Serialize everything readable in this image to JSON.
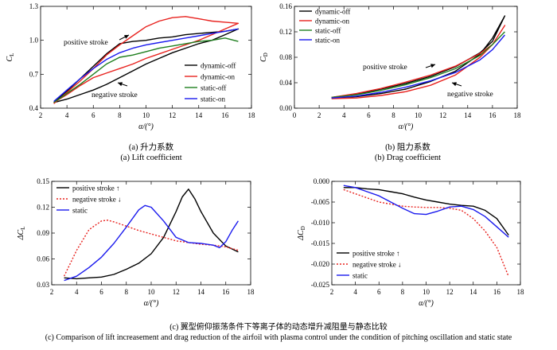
{
  "captions": {
    "a_zh": "(a) 升力系数",
    "a_en": "(a) Lift coefficient",
    "b_zh": "(b) 阻力系数",
    "b_en": "(b) Drag coefficient",
    "c_zh": "(c) 翼型俯仰振荡条件下等离子体的动态增升减阻量与静态比较",
    "c_en": "(c) Comparison of lift increasement and drag reduction of the airfoil with plasma control under the condition of pitching oscillation and static state"
  },
  "colors": {
    "black": "#000000",
    "red": "#e8231f",
    "green": "#1f7f1f",
    "blue": "#1a1aee",
    "gray": "#777777"
  },
  "chart_data": [
    {
      "id": "a",
      "type": "line",
      "xlabel": "α/(°)",
      "ylabel": "C_L",
      "xlim": [
        2,
        18
      ],
      "ylim": [
        0.4,
        1.3
      ],
      "xticks": [
        2,
        4,
        6,
        8,
        10,
        12,
        14,
        16,
        18
      ],
      "yticks": [
        0.4,
        0.7,
        1.0,
        1.3
      ],
      "grid": false,
      "legend_position": "bottom-right",
      "annotations": [
        "positive stroke",
        "negative stroke"
      ],
      "series": [
        {
          "name": "dynamic-off",
          "color": "#000000",
          "dash": "",
          "x": [
            3,
            4,
            5,
            6,
            7,
            8,
            9,
            10,
            11,
            12,
            13,
            14,
            15,
            16,
            17,
            16,
            15,
            14,
            13,
            12,
            11,
            10,
            9,
            8,
            7,
            6,
            5,
            4,
            3
          ],
          "y": [
            0.45,
            0.55,
            0.66,
            0.77,
            0.88,
            0.97,
            0.99,
            1.0,
            1.02,
            1.03,
            1.05,
            1.06,
            1.07,
            1.08,
            1.1,
            1.05,
            1.0,
            0.97,
            0.93,
            0.89,
            0.84,
            0.79,
            0.73,
            0.67,
            0.61,
            0.56,
            0.52,
            0.48,
            0.45
          ]
        },
        {
          "name": "dynamic-on",
          "color": "#e8231f",
          "dash": "",
          "x": [
            3,
            4,
            5,
            6,
            7,
            8,
            9,
            10,
            11,
            12,
            13,
            14,
            15,
            16,
            17,
            16,
            15,
            14,
            13,
            12,
            11,
            10,
            9,
            8,
            7,
            6,
            5,
            4,
            3
          ],
          "y": [
            0.44,
            0.54,
            0.64,
            0.75,
            0.87,
            0.96,
            1.04,
            1.12,
            1.17,
            1.2,
            1.21,
            1.19,
            1.17,
            1.16,
            1.15,
            1.1,
            1.05,
            1.0,
            0.96,
            0.92,
            0.88,
            0.84,
            0.79,
            0.75,
            0.71,
            0.67,
            0.6,
            0.52,
            0.45
          ]
        },
        {
          "name": "static-off",
          "color": "#1f7f1f",
          "dash": "",
          "x": [
            3,
            4,
            5,
            6,
            7,
            8,
            9,
            10,
            11,
            12,
            13,
            14,
            15,
            16,
            17
          ],
          "y": [
            0.45,
            0.53,
            0.61,
            0.7,
            0.79,
            0.85,
            0.87,
            0.9,
            0.93,
            0.95,
            0.97,
            0.99,
            1.0,
            1.02,
            0.99
          ]
        },
        {
          "name": "static-on",
          "color": "#1a1aee",
          "dash": "",
          "x": [
            3,
            4,
            5,
            6,
            7,
            8,
            9,
            10,
            11,
            12,
            13,
            14,
            15,
            16,
            17
          ],
          "y": [
            0.46,
            0.56,
            0.66,
            0.75,
            0.83,
            0.89,
            0.93,
            0.96,
            0.98,
            1.0,
            1.02,
            1.04,
            1.06,
            1.08,
            1.1
          ]
        }
      ]
    },
    {
      "id": "b",
      "type": "line",
      "xlabel": "α/(°)",
      "ylabel": "C_D",
      "xlim": [
        0,
        18
      ],
      "ylim": [
        0,
        0.16
      ],
      "xticks": [
        0,
        2,
        4,
        6,
        8,
        10,
        12,
        14,
        16,
        18
      ],
      "yticks": [
        0.0,
        0.04,
        0.08,
        0.12,
        0.16
      ],
      "grid": false,
      "legend_position": "top-left",
      "annotations": [
        "positive stroke",
        "negative stroke"
      ],
      "series": [
        {
          "name": "dynamic-off",
          "color": "#000000",
          "dash": "",
          "x": [
            3,
            5,
            7,
            9,
            11,
            13,
            15,
            16,
            17,
            16,
            15,
            13,
            11,
            9,
            7,
            5,
            3
          ],
          "y": [
            0.017,
            0.022,
            0.03,
            0.039,
            0.05,
            0.065,
            0.087,
            0.105,
            0.145,
            0.11,
            0.085,
            0.058,
            0.042,
            0.03,
            0.023,
            0.018,
            0.016
          ]
        },
        {
          "name": "dynamic-on",
          "color": "#e8231f",
          "dash": "",
          "x": [
            3,
            5,
            7,
            9,
            11,
            13,
            15,
            16,
            17,
            16,
            15,
            13,
            11,
            9,
            7,
            5,
            3
          ],
          "y": [
            0.017,
            0.023,
            0.031,
            0.041,
            0.052,
            0.066,
            0.086,
            0.1,
            0.13,
            0.1,
            0.08,
            0.052,
            0.036,
            0.026,
            0.02,
            0.016,
            0.015
          ]
        },
        {
          "name": "static-off",
          "color": "#1f7f1f",
          "dash": "",
          "x": [
            3,
            5,
            7,
            9,
            11,
            13,
            15,
            16,
            17
          ],
          "y": [
            0.017,
            0.021,
            0.028,
            0.037,
            0.048,
            0.062,
            0.083,
            0.1,
            0.12
          ]
        },
        {
          "name": "static-on",
          "color": "#1a1aee",
          "dash": "",
          "x": [
            3,
            5,
            7,
            9,
            11,
            13,
            15,
            16,
            17
          ],
          "y": [
            0.016,
            0.019,
            0.025,
            0.033,
            0.043,
            0.056,
            0.076,
            0.092,
            0.115
          ]
        }
      ]
    },
    {
      "id": "c",
      "type": "line",
      "xlabel": "α/(°)",
      "ylabel": "ΔC_L",
      "xlim": [
        2,
        18
      ],
      "ylim": [
        0.03,
        0.15
      ],
      "xticks": [
        2,
        4,
        6,
        8,
        10,
        12,
        14,
        16,
        18
      ],
      "yticks": [
        0.03,
        0.06,
        0.09,
        0.12,
        0.15
      ],
      "grid": false,
      "legend_position": "top-left",
      "series": [
        {
          "name": "positive stroke ↑",
          "color": "#000000",
          "dash": "",
          "x": [
            3,
            4,
            5,
            6,
            7,
            8,
            9,
            10,
            11,
            12,
            12.5,
            13,
            13.5,
            14,
            15,
            16,
            17
          ],
          "y": [
            0.038,
            0.037,
            0.038,
            0.039,
            0.042,
            0.048,
            0.055,
            0.066,
            0.085,
            0.115,
            0.132,
            0.141,
            0.13,
            0.115,
            0.09,
            0.075,
            0.068
          ]
        },
        {
          "name": "negative stroke ↓",
          "color": "#e8231f",
          "dash": "2,2",
          "x": [
            3,
            4,
            5,
            6,
            6.5,
            7,
            8,
            9,
            10,
            11,
            12,
            13,
            14,
            15,
            16,
            17
          ],
          "y": [
            0.04,
            0.07,
            0.094,
            0.104,
            0.105,
            0.103,
            0.098,
            0.093,
            0.089,
            0.085,
            0.081,
            0.079,
            0.077,
            0.076,
            0.074,
            0.07
          ]
        },
        {
          "name": "static",
          "color": "#1a1aee",
          "dash": "",
          "x": [
            3,
            4,
            5,
            6,
            7,
            8,
            9,
            9.5,
            10,
            11,
            12,
            13,
            14,
            15,
            15.5,
            16,
            16.5,
            17
          ],
          "y": [
            0.035,
            0.04,
            0.05,
            0.062,
            0.078,
            0.097,
            0.117,
            0.122,
            0.12,
            0.104,
            0.085,
            0.079,
            0.078,
            0.076,
            0.073,
            0.08,
            0.093,
            0.104
          ]
        }
      ]
    },
    {
      "id": "d",
      "type": "line",
      "xlabel": "α/(°)",
      "ylabel": "ΔC_D",
      "xlim": [
        2,
        18
      ],
      "ylim": [
        -0.025,
        0.0
      ],
      "xticks": [
        2,
        4,
        6,
        8,
        10,
        12,
        14,
        16,
        18
      ],
      "yticks": [
        0.0,
        -0.005,
        -0.01,
        -0.015,
        -0.02,
        -0.025
      ],
      "grid": false,
      "legend_position": "bottom-left",
      "series": [
        {
          "name": "positive stroke ↑",
          "color": "#000000",
          "dash": "",
          "x": [
            3,
            4,
            5,
            6,
            7,
            8,
            9,
            10,
            11,
            12,
            13,
            14,
            15,
            16,
            17
          ],
          "y": [
            -0.0015,
            -0.0015,
            -0.0018,
            -0.002,
            -0.0025,
            -0.003,
            -0.0038,
            -0.0045,
            -0.005,
            -0.0055,
            -0.0058,
            -0.006,
            -0.007,
            -0.009,
            -0.013
          ]
        },
        {
          "name": "negative stroke ↓",
          "color": "#e8231f",
          "dash": "2,2",
          "x": [
            3,
            4,
            5,
            6,
            7,
            8,
            9,
            10,
            11,
            12,
            13,
            14,
            15,
            16,
            17
          ],
          "y": [
            -0.002,
            -0.003,
            -0.004,
            -0.005,
            -0.0055,
            -0.006,
            -0.0062,
            -0.0063,
            -0.0063,
            -0.0065,
            -0.007,
            -0.009,
            -0.012,
            -0.016,
            -0.023
          ]
        },
        {
          "name": "static",
          "color": "#1a1aee",
          "dash": "",
          "x": [
            3,
            4,
            5,
            6,
            7,
            8,
            9,
            10,
            11,
            12,
            13,
            14,
            15,
            16,
            17
          ],
          "y": [
            -0.001,
            -0.0015,
            -0.0025,
            -0.0035,
            -0.005,
            -0.0065,
            -0.0078,
            -0.008,
            -0.0072,
            -0.0062,
            -0.006,
            -0.0068,
            -0.0085,
            -0.011,
            -0.0135
          ]
        }
      ]
    }
  ]
}
